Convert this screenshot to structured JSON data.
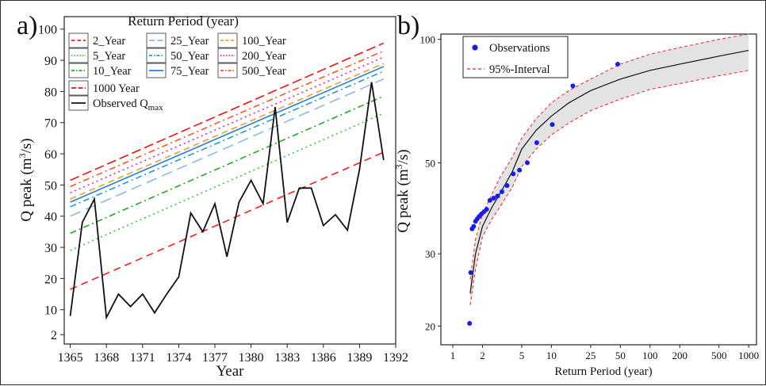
{
  "chart_data": [
    {
      "panel_label": "a)",
      "type": "line",
      "xlabel": "Year",
      "ylabel_parts": [
        "Q peak (m",
        "3",
        "/s)"
      ],
      "xlim": [
        1364.5,
        1392
      ],
      "ylim": [
        -1,
        104
      ],
      "x_ticks": [
        1365,
        1368,
        1371,
        1374,
        1377,
        1380,
        1383,
        1386,
        1389,
        1392
      ],
      "y_ticks": [
        {
          "v": 2,
          "label": "2"
        },
        {
          "v": 10,
          "label": "10"
        },
        {
          "v": 20,
          "label": "20"
        },
        {
          "v": 30,
          "label": "30"
        },
        {
          "v": 40,
          "label": "40"
        },
        {
          "v": 50,
          "label": "50"
        },
        {
          "v": 60,
          "label": "60"
        },
        {
          "v": 70,
          "label": "70"
        },
        {
          "v": 80,
          "label": "80"
        },
        {
          "v": 90,
          "label": "90"
        },
        {
          "v": 100,
          "label": "100"
        }
      ],
      "legend_title": "Return Period (year)",
      "return_period_lines": [
        {
          "name": "2_Year",
          "color": "#ff1a1a",
          "dash": "9,6",
          "x": [
            1365,
            1391
          ],
          "y": [
            16.5,
            60.5
          ]
        },
        {
          "name": "5_Year",
          "color": "#33cc33",
          "dash": "2,4",
          "x": [
            1365,
            1391
          ],
          "y": [
            29,
            73
          ]
        },
        {
          "name": "10_Year",
          "color": "#22aa22",
          "dash": "8,4,2,4",
          "x": [
            1365,
            1391
          ],
          "y": [
            34.5,
            78.5
          ]
        },
        {
          "name": "25_Year",
          "color": "#88bbe6",
          "dash": "14,7",
          "x": [
            1365,
            1391
          ],
          "y": [
            40,
            84
          ]
        },
        {
          "name": "50_Year",
          "color": "#1f9bd8",
          "dash": "8,4,2,4",
          "x": [
            1365,
            1391
          ],
          "y": [
            43,
            86.5
          ]
        },
        {
          "name": "75_Year",
          "color": "#1e7fe0",
          "dash": "",
          "x": [
            1365,
            1391
          ],
          "y": [
            44.5,
            88
          ]
        },
        {
          "name": "100_Year",
          "color": "#f0a020",
          "dash": "8,5",
          "x": [
            1365,
            1391
          ],
          "y": [
            45.5,
            89
          ]
        },
        {
          "name": "200_Year",
          "color": "#dd22dd",
          "dash": "2,4",
          "x": [
            1365,
            1391
          ],
          "y": [
            47.5,
            91
          ]
        },
        {
          "name": "500_Year",
          "color": "#ff5522",
          "dash": "8,4,2,4",
          "x": [
            1365,
            1391
          ],
          "y": [
            49.5,
            93
          ]
        },
        {
          "name": "1000  Year",
          "color": "#ee1111",
          "dash": "12,5",
          "x": [
            1365,
            1391
          ],
          "y": [
            51.5,
            95.5
          ]
        }
      ],
      "observed": {
        "name": "Observed Q",
        "name_sub": "max",
        "color": "#111111",
        "x": [
          1365,
          1366,
          1367,
          1368,
          1369,
          1370,
          1371,
          1372,
          1373,
          1374,
          1375,
          1376,
          1377,
          1378,
          1379,
          1380,
          1381,
          1382,
          1383,
          1384,
          1385,
          1386,
          1387,
          1388,
          1389,
          1390,
          1391
        ],
        "y": [
          8,
          38,
          45.5,
          7.5,
          15,
          11,
          15,
          9,
          15,
          20.5,
          41,
          35,
          44,
          27,
          44.5,
          51.5,
          44,
          75,
          38,
          49,
          49,
          37,
          40.5,
          35.5,
          55,
          83,
          58
        ]
      }
    },
    {
      "panel_label": "b)",
      "type": "line",
      "xlabel": "Return Period (year)",
      "ylabel_parts": [
        "Q peak (m",
        "3",
        "/s)"
      ],
      "x_scale": "log",
      "y_scale": "log",
      "xlim": [
        1,
        1200
      ],
      "ylim": [
        18,
        103
      ],
      "x_ticks": [
        1,
        2,
        5,
        10,
        25,
        50,
        100,
        200,
        500,
        1000
      ],
      "y_ticks": [
        20,
        30,
        50,
        100
      ],
      "legend": [
        "Observations",
        "95%-Interval"
      ],
      "fitted": {
        "x": [
          1.5,
          1.7,
          2,
          2.5,
          3,
          4,
          5,
          7,
          10,
          15,
          25,
          50,
          100,
          200,
          500,
          1000
        ],
        "y": [
          24,
          30,
          35,
          39,
          42,
          47.5,
          54,
          60,
          65,
          70,
          75,
          80,
          84,
          87,
          91,
          94
        ]
      },
      "interval_upper": {
        "x": [
          1.5,
          1.7,
          2,
          2.5,
          3,
          4,
          5,
          7,
          10,
          15,
          25,
          50,
          100,
          200,
          500,
          1000
        ],
        "y": [
          26,
          32.5,
          37.5,
          42,
          46,
          51.5,
          57.5,
          64,
          70,
          75,
          80,
          87,
          92,
          95.5,
          100,
          103
        ]
      },
      "interval_lower": {
        "x": [
          1.5,
          1.7,
          2,
          2.5,
          3,
          4,
          5,
          7,
          10,
          15,
          25,
          50,
          100,
          200,
          500,
          1000
        ],
        "y": [
          22.5,
          27.5,
          33,
          36.5,
          39,
          43.5,
          49,
          54,
          58.5,
          62.5,
          67,
          71.5,
          75.5,
          78,
          81.5,
          84
        ]
      },
      "observations": {
        "color": "#1a1aee",
        "x": [
          1.48,
          1.52,
          1.57,
          1.63,
          1.7,
          1.77,
          1.85,
          1.95,
          2.07,
          2.2,
          2.38,
          2.6,
          2.85,
          3.15,
          3.55,
          4.1,
          4.75,
          5.7,
          7.1,
          10.2,
          16.5,
          47
        ],
        "y": [
          20.3,
          27,
          34.5,
          35,
          36,
          36.5,
          37,
          37.5,
          38,
          38.5,
          40.5,
          41,
          41.5,
          42.5,
          44,
          47,
          48,
          50,
          56,
          62,
          77,
          87
        ]
      }
    }
  ]
}
